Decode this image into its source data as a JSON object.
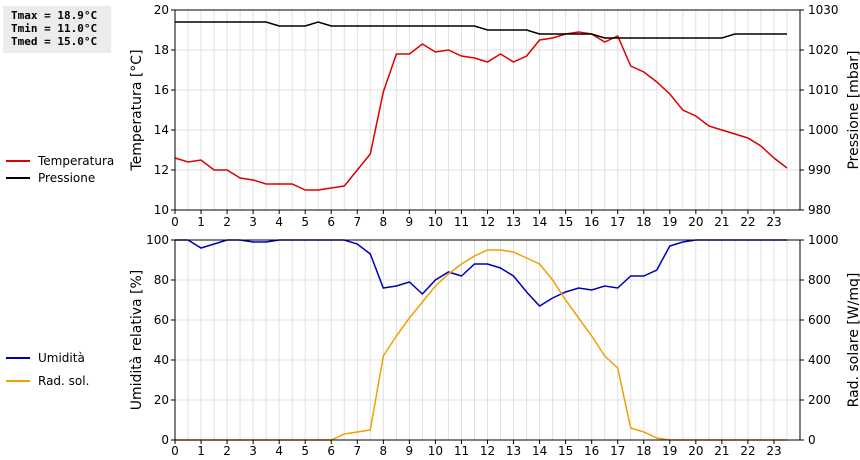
{
  "stats": {
    "tmax": "Tmax = 18.9°C",
    "tmin": "Tmin = 11.0°C",
    "tmed": "Tmed = 15.0°C"
  },
  "chart_data": [
    {
      "type": "line",
      "title": "",
      "xlabel": "",
      "xlim": [
        0,
        24
      ],
      "x_ticks": [
        0,
        1,
        2,
        3,
        4,
        5,
        6,
        7,
        8,
        9,
        10,
        11,
        12,
        13,
        14,
        15,
        16,
        17,
        18,
        19,
        20,
        21,
        22,
        23
      ],
      "left_axis": {
        "label": "Temperatura [°C]",
        "range": [
          10,
          20
        ],
        "ticks": [
          10,
          12,
          14,
          16,
          18,
          20
        ]
      },
      "right_axis": {
        "label": "Pressione [mbar]",
        "range": [
          980,
          1030
        ],
        "ticks": [
          980,
          990,
          1000,
          1010,
          1020,
          1030
        ]
      },
      "grid": true,
      "legend_position": "left",
      "series": [
        {
          "name": "Temperatura",
          "axis": "left",
          "color": "#dd0000",
          "x": [
            0,
            0.5,
            1,
            1.5,
            2,
            2.5,
            3,
            3.5,
            4,
            4.5,
            5,
            5.5,
            6,
            6.5,
            7,
            7.5,
            8,
            8.5,
            9,
            9.5,
            10,
            10.5,
            11,
            11.5,
            12,
            12.5,
            13,
            13.5,
            14,
            14.5,
            15,
            15.5,
            16,
            16.5,
            17,
            17.5,
            18,
            18.5,
            19,
            19.5,
            20,
            20.5,
            21,
            21.5,
            22,
            22.5,
            23,
            23.5
          ],
          "values": [
            12.6,
            12.4,
            12.5,
            12.0,
            12.0,
            11.6,
            11.5,
            11.3,
            11.3,
            11.3,
            11.0,
            11.0,
            11.1,
            11.2,
            12.0,
            12.8,
            15.9,
            17.8,
            17.8,
            18.3,
            17.9,
            18.0,
            17.7,
            17.6,
            17.4,
            17.8,
            17.4,
            17.7,
            18.5,
            18.6,
            18.8,
            18.9,
            18.8,
            18.4,
            18.7,
            17.2,
            16.9,
            16.4,
            15.8,
            15.0,
            14.7,
            14.2,
            14.0,
            13.8,
            13.6,
            13.2,
            12.6,
            12.1
          ]
        },
        {
          "name": "Pressione",
          "axis": "right",
          "color": "#000000",
          "x": [
            0,
            0.5,
            1,
            1.5,
            2,
            2.5,
            3,
            3.5,
            4,
            4.5,
            5,
            5.5,
            6,
            6.5,
            7,
            7.5,
            8,
            8.5,
            9,
            9.5,
            10,
            10.5,
            11,
            11.5,
            12,
            12.5,
            13,
            13.5,
            14,
            14.5,
            15,
            15.5,
            16,
            16.5,
            17,
            17.5,
            18,
            18.5,
            19,
            19.5,
            20,
            20.5,
            21,
            21.5,
            22,
            22.5,
            23,
            23.5
          ],
          "values": [
            1027,
            1027,
            1027,
            1027,
            1027,
            1027,
            1027,
            1027,
            1026,
            1026,
            1026,
            1027,
            1026,
            1026,
            1026,
            1026,
            1026,
            1026,
            1026,
            1026,
            1026,
            1026,
            1026,
            1026,
            1025,
            1025,
            1025,
            1025,
            1024,
            1024,
            1024,
            1024,
            1024,
            1023,
            1023,
            1023,
            1023,
            1023,
            1023,
            1023,
            1023,
            1023,
            1023,
            1024,
            1024,
            1024,
            1024,
            1024
          ]
        }
      ]
    },
    {
      "type": "line",
      "title": "",
      "xlabel": "",
      "xlim": [
        0,
        24
      ],
      "x_ticks": [
        0,
        1,
        2,
        3,
        4,
        5,
        6,
        7,
        8,
        9,
        10,
        11,
        12,
        13,
        14,
        15,
        16,
        17,
        18,
        19,
        20,
        21,
        22,
        23
      ],
      "left_axis": {
        "label": "Umidità relativa [%]",
        "range": [
          0,
          100
        ],
        "ticks": [
          0,
          20,
          40,
          60,
          80,
          100
        ]
      },
      "right_axis": {
        "label": "Rad. solare [W/mq]",
        "range": [
          0,
          1000
        ],
        "ticks": [
          0,
          200,
          400,
          600,
          800,
          1000
        ]
      },
      "grid": true,
      "legend_position": "left",
      "series": [
        {
          "name": "Umidità",
          "axis": "left",
          "color": "#0000bb",
          "x": [
            0,
            0.5,
            1,
            1.5,
            2,
            2.5,
            3,
            3.5,
            4,
            4.5,
            5,
            5.5,
            6,
            6.5,
            7,
            7.5,
            8,
            8.5,
            9,
            9.5,
            10,
            10.5,
            11,
            11.5,
            12,
            12.5,
            13,
            13.5,
            14,
            14.5,
            15,
            15.5,
            16,
            16.5,
            17,
            17.5,
            18,
            18.5,
            19,
            19.5,
            20,
            20.5,
            21,
            21.5,
            22,
            22.5,
            23,
            23.5
          ],
          "values": [
            100,
            100,
            96,
            98,
            100,
            100,
            99,
            99,
            100,
            100,
            100,
            100,
            100,
            100,
            98,
            93,
            76,
            77,
            79,
            73,
            80,
            84,
            82,
            88,
            88,
            86,
            82,
            74,
            67,
            71,
            74,
            76,
            75,
            77,
            76,
            82,
            82,
            85,
            97,
            99,
            100,
            100,
            100,
            100,
            100,
            100,
            100,
            100
          ]
        },
        {
          "name": "Rad. sol.",
          "axis": "right",
          "color": "#f0a000",
          "x": [
            0,
            0.5,
            1,
            1.5,
            2,
            2.5,
            3,
            3.5,
            4,
            4.5,
            5,
            5.5,
            6,
            6.5,
            7,
            7.5,
            8,
            8.5,
            9,
            9.5,
            10,
            10.5,
            11,
            11.5,
            12,
            12.5,
            13,
            13.5,
            14,
            14.5,
            15,
            15.5,
            16,
            16.5,
            17,
            17.5,
            18,
            18.5,
            19,
            19.5,
            20,
            20.5,
            21,
            21.5,
            22,
            22.5,
            23,
            23.5
          ],
          "values": [
            0,
            0,
            0,
            0,
            0,
            0,
            0,
            0,
            0,
            0,
            0,
            0,
            0,
            30,
            40,
            50,
            420,
            520,
            610,
            690,
            770,
            830,
            880,
            920,
            950,
            950,
            940,
            910,
            880,
            800,
            700,
            610,
            520,
            420,
            360,
            60,
            40,
            10,
            0,
            0,
            0,
            0,
            0,
            0,
            0,
            0,
            0,
            0
          ]
        }
      ]
    }
  ]
}
